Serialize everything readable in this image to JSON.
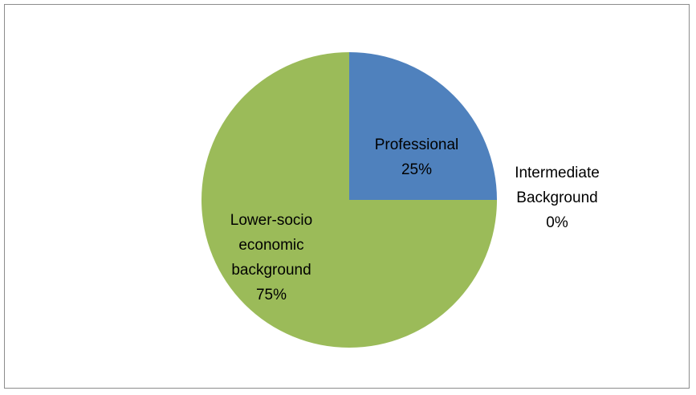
{
  "chart_data": {
    "type": "pie",
    "slices": [
      {
        "category": "Professional",
        "value": 25,
        "label_lines": [
          "Professional",
          "25%"
        ],
        "color": "#4F81BD"
      },
      {
        "category": "Intermediate Background",
        "value": 0,
        "label_lines": [
          "Intermediate",
          "Background",
          "0%"
        ],
        "color": "#C0504D"
      },
      {
        "category": "Lower-socio economic background",
        "value": 75,
        "label_lines": [
          "Lower-socio",
          "economic",
          "background",
          "75%"
        ],
        "color": "#9BBB59"
      }
    ],
    "start_angle_deg": 0,
    "direction": "clockwise",
    "legend": "none"
  }
}
